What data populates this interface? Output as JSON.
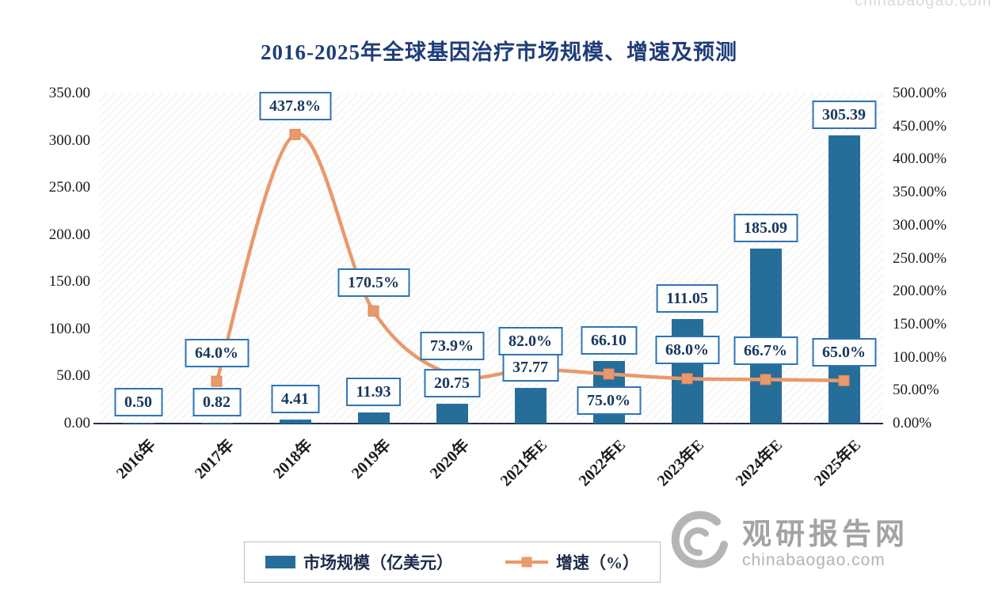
{
  "title": "2016-2025年全球基因治疗市场规模、增速及预测",
  "chart_data": {
    "type": "bar+line",
    "categories": [
      "2016年",
      "2017年",
      "2018年",
      "2019年",
      "2020年",
      "2021年E",
      "2022年E",
      "2023年E",
      "2024年E",
      "2025年E"
    ],
    "series": [
      {
        "name": "市场规模（亿美元）",
        "type": "bar",
        "color": "#256E99",
        "values": [
          0.5,
          0.82,
          4.41,
          11.93,
          20.75,
          37.77,
          66.1,
          111.05,
          185.09,
          305.39
        ],
        "labels": [
          "0.50",
          "0.82",
          "4.41",
          "11.93",
          "20.75",
          "37.77",
          "66.10",
          "111.05",
          "185.09",
          "305.39"
        ]
      },
      {
        "name": "增速（%）",
        "type": "line",
        "color": "#E9996B",
        "values": [
          null,
          64.0,
          437.8,
          170.5,
          73.9,
          82.0,
          75.0,
          68.0,
          66.7,
          65.0
        ],
        "labels": [
          "",
          "64.0%",
          "437.8%",
          "170.5%",
          "73.9%",
          "82.0%",
          "75.0%",
          "68.0%",
          "66.7%",
          "65.0%"
        ],
        "label_positions": [
          "",
          "above",
          "above",
          "above",
          "above",
          "above",
          "below",
          "above",
          "above",
          "above"
        ]
      }
    ],
    "left_axis": {
      "min": 0,
      "max": 350,
      "step": 50,
      "ticks": [
        "350.00",
        "300.00",
        "250.00",
        "200.00",
        "150.00",
        "100.00",
        "50.00",
        "0.00"
      ]
    },
    "right_axis": {
      "min": 0,
      "max": 500,
      "step": 50,
      "ticks": [
        "500.00%",
        "450.00%",
        "400.00%",
        "350.00%",
        "300.00%",
        "250.00%",
        "200.00%",
        "150.00%",
        "100.00%",
        "50.00%",
        "0.00%"
      ]
    },
    "legend": [
      {
        "label": "市场规模（亿美元）",
        "marker": "bar",
        "color": "#256E99"
      },
      {
        "label": "增速（%）",
        "marker": "line-square",
        "color": "#E9996B"
      }
    ],
    "grid": "hatched-background",
    "legend_position": "bottom-center"
  },
  "watermark": {
    "brand": "观研报告网",
    "site": "chinabaogao.com"
  },
  "colors": {
    "bar": "#256E99",
    "line": "#E9996B",
    "label_border": "#2E74B5",
    "label_text": "#17375E",
    "axis_text": "#1a1a1a",
    "title": "#1F3D7A"
  }
}
